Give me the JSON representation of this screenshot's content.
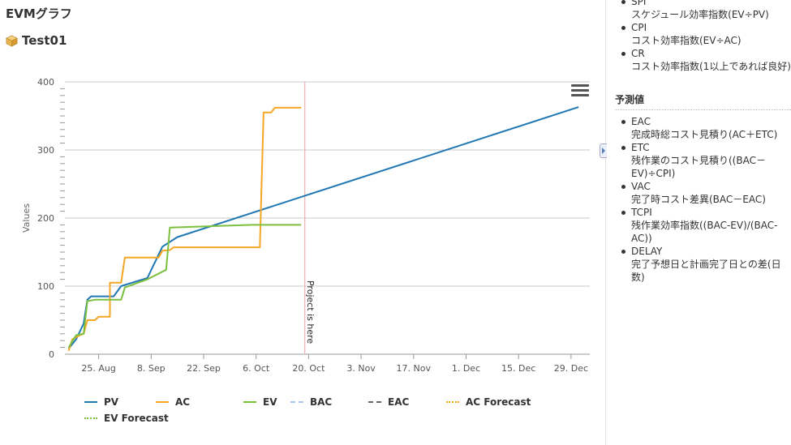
{
  "header": {
    "title": "EVMグラフ",
    "project_name": "Test01"
  },
  "chart_data": {
    "type": "line",
    "ylabel": "Values",
    "xlabel": "",
    "ylim": [
      0,
      400
    ],
    "yticks": [
      0,
      100,
      200,
      300,
      400
    ],
    "x_start": "2025-08-16",
    "x_end": "2026-01-03",
    "x_ticks": [
      {
        "label": "25. Aug",
        "date": "2025-08-25"
      },
      {
        "label": "8. Sep",
        "date": "2025-09-08"
      },
      {
        "label": "22. Sep",
        "date": "2025-09-22"
      },
      {
        "label": "6. Oct",
        "date": "2025-10-06"
      },
      {
        "label": "20. Oct",
        "date": "2025-10-20"
      },
      {
        "label": "3. Nov",
        "date": "2025-11-03"
      },
      {
        "label": "17. Nov",
        "date": "2025-11-17"
      },
      {
        "label": "1. Dec",
        "date": "2025-12-01"
      },
      {
        "label": "15. Dec",
        "date": "2025-12-15"
      },
      {
        "label": "29. Dec",
        "date": "2025-12-29"
      }
    ],
    "plot_line": {
      "date": "2025-10-19",
      "label": "Project is here",
      "color": "#e8a0a0"
    },
    "grid": true,
    "legend_position": "bottom",
    "series": [
      {
        "name": "PV",
        "color": "#1f77b4",
        "style": "solid",
        "points": [
          [
            "2025-08-17",
            8
          ],
          [
            "2025-08-19",
            22
          ],
          [
            "2025-08-21",
            45
          ],
          [
            "2025-08-22",
            80
          ],
          [
            "2025-08-23",
            85
          ],
          [
            "2025-08-29",
            85
          ],
          [
            "2025-08-31",
            100
          ],
          [
            "2025-09-07",
            112
          ],
          [
            "2025-09-11",
            158
          ],
          [
            "2025-09-15",
            172
          ],
          [
            "2025-12-31",
            363
          ]
        ]
      },
      {
        "name": "AC",
        "color": "#f5a623",
        "style": "solid",
        "points": [
          [
            "2025-08-17",
            5
          ],
          [
            "2025-08-18",
            22
          ],
          [
            "2025-08-20",
            28
          ],
          [
            "2025-08-21",
            30
          ],
          [
            "2025-08-22",
            50
          ],
          [
            "2025-08-24",
            50
          ],
          [
            "2025-08-25",
            55
          ],
          [
            "2025-08-28",
            55
          ],
          [
            "2025-08-28",
            105
          ],
          [
            "2025-08-31",
            105
          ],
          [
            "2025-09-01",
            142
          ],
          [
            "2025-09-10",
            142
          ],
          [
            "2025-09-11",
            152
          ],
          [
            "2025-09-13",
            153
          ],
          [
            "2025-09-14",
            157
          ],
          [
            "2025-10-07",
            157
          ],
          [
            "2025-10-08",
            355
          ],
          [
            "2025-10-10",
            355
          ],
          [
            "2025-10-11",
            362
          ],
          [
            "2025-10-18",
            362
          ]
        ]
      },
      {
        "name": "EV",
        "color": "#7cbf3f",
        "style": "solid",
        "points": [
          [
            "2025-08-17",
            10
          ],
          [
            "2025-08-19",
            28
          ],
          [
            "2025-08-21",
            30
          ],
          [
            "2025-08-22",
            78
          ],
          [
            "2025-08-24",
            80
          ],
          [
            "2025-08-31",
            80
          ],
          [
            "2025-09-01",
            98
          ],
          [
            "2025-09-07",
            110
          ],
          [
            "2025-09-12",
            124
          ],
          [
            "2025-09-13",
            186
          ],
          [
            "2025-10-05",
            190
          ],
          [
            "2025-10-18",
            190
          ]
        ]
      },
      {
        "name": "BAC",
        "color": "#a8c8f0",
        "style": "dash",
        "points": []
      },
      {
        "name": "EAC",
        "color": "#666666",
        "style": "dash",
        "points": []
      },
      {
        "name": "AC Forecast",
        "color": "#f5a623",
        "style": "dot",
        "points": []
      },
      {
        "name": "EV Forecast",
        "color": "#7cbf3f",
        "style": "dot",
        "points": []
      }
    ]
  },
  "side": {
    "indices": [
      {
        "term": "SPI",
        "desc": "スケジュール効率指数(EV÷PV)"
      },
      {
        "term": "CPI",
        "desc": "コスト効率指数(EV÷AC)"
      },
      {
        "term": "CR",
        "desc": "コスト効率指数(1以上であれば良好)"
      }
    ],
    "forecast_heading": "予測値",
    "forecasts": [
      {
        "term": "EAC",
        "desc": "完成時総コスト見積り(AC＋ETC)"
      },
      {
        "term": "ETC",
        "desc": "残作業のコスト見積り((BAC－EV)÷CPI)"
      },
      {
        "term": "VAC",
        "desc": "完了時コスト差異(BAC－EAC)"
      },
      {
        "term": "TCPI",
        "desc": "残作業効率指数((BAC-EV)/(BAC-AC))"
      },
      {
        "term": "DELAY",
        "desc": "完了予想日と計画完了日との差(日数)"
      }
    ]
  }
}
